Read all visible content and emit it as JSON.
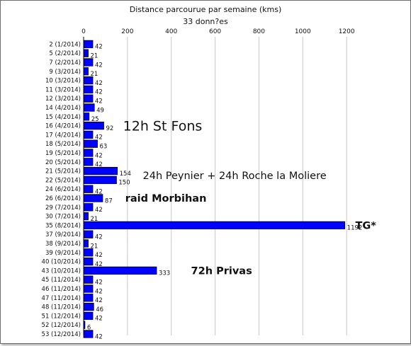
{
  "chart_data": {
    "type": "bar",
    "orientation": "horizontal",
    "title": "Distance parcourue par semaine (kms)",
    "subtitle": "33 donn?es",
    "xlim": [
      0,
      1400
    ],
    "xticks": [
      0,
      200,
      400,
      600,
      800,
      1000,
      1200
    ],
    "grid": true,
    "bar_color": "#0000ff",
    "categories": [
      "2 (1/2014)",
      "5 (2/2014)",
      "7 (2/2014)",
      "9 (3/2014)",
      "10 (3/2014)",
      "11 (3/2014)",
      "12 (3/2014)",
      "14 (4/2014)",
      "15 (4/2014)",
      "16 (4/2014)",
      "17 (4/2014)",
      "18 (5/2014)",
      "19 (5/2014)",
      "20 (5/2014)",
      "21 (5/2014)",
      "22 (5/2014)",
      "24 (6/2014)",
      "26 (6/2014)",
      "29 (7/2014)",
      "30 (7/2014)",
      "35 (8/2014)",
      "37 (9/2014)",
      "38 (9/2014)",
      "39 (9/2014)",
      "40 (10/2014)",
      "43 (10/2014)",
      "45 (11/2014)",
      "46 (11/2014)",
      "47 (11/2014)",
      "48 (11/2014)",
      "51 (12/2014)",
      "52 (12/2014)",
      "53 (12/2014)"
    ],
    "values": [
      42,
      21,
      42,
      21,
      42,
      42,
      42,
      49,
      25,
      92,
      42,
      63,
      42,
      42,
      154,
      150,
      42,
      87,
      42,
      21,
      1192,
      42,
      21,
      42,
      42,
      333,
      42,
      42,
      42,
      46,
      42,
      6,
      42
    ],
    "annotations": [
      {
        "text": "12h St Fons",
        "category_index": 9,
        "size": "large",
        "weight": "normal",
        "anchor_value": 180
      },
      {
        "text": "24h Peynier + 24h Roche la Moliere",
        "category_index": 14.5,
        "size": "medium",
        "weight": "normal",
        "anchor_value": 270
      },
      {
        "text": "raid Morbihan",
        "category_index": 17,
        "size": "medium",
        "weight": "bold",
        "anchor_value": 190
      },
      {
        "text": "TG*",
        "category_index": 20,
        "size": "medium",
        "weight": "bold",
        "anchor_value": 1240
      },
      {
        "text": "72h Privas",
        "category_index": 25,
        "size": "medium",
        "weight": "bold",
        "anchor_value": 490
      }
    ]
  }
}
